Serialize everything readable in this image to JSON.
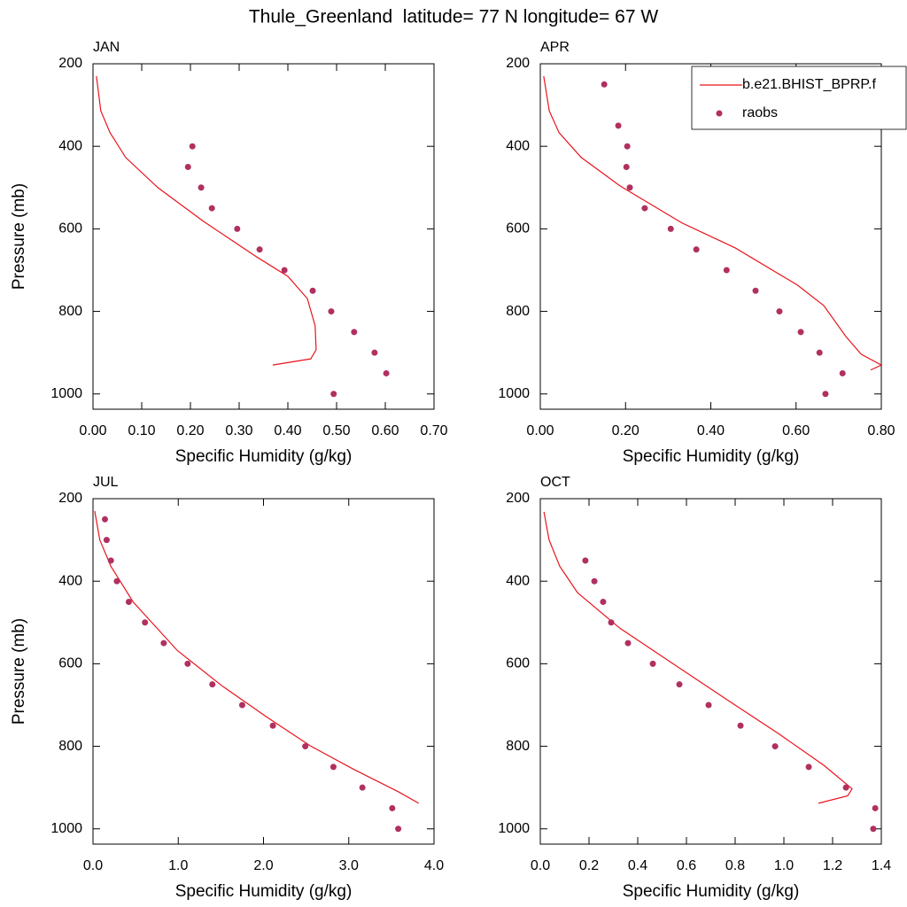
{
  "title": "Thule_Greenland  latitude= 77 N longitude= 67 W",
  "chart_data": [
    {
      "type": "line",
      "title": "JAN",
      "xlabel": "Specific Humidity (g/kg)",
      "ylabel": "Pressure (mb)",
      "xlim": [
        0,
        0.7
      ],
      "xticks": [
        {
          "value": 0,
          "label": "0.00"
        },
        {
          "value": 0.1,
          "label": "0.10"
        },
        {
          "value": 0.2,
          "label": "0.20"
        },
        {
          "value": 0.3,
          "label": "0.30"
        },
        {
          "value": 0.4,
          "label": "0.40"
        },
        {
          "value": 0.5,
          "label": "0.50"
        },
        {
          "value": 0.6,
          "label": "0.60"
        },
        {
          "value": 0.7,
          "label": "0.70"
        }
      ],
      "ylim": [
        200,
        1037
      ],
      "yticks": [
        200,
        400,
        600,
        800,
        1000
      ],
      "y_reversed": true,
      "series": [
        {
          "type": "line",
          "color": "#e8141c",
          "x": [
            0.007,
            0.016,
            0.035,
            0.067,
            0.133,
            0.227,
            0.336,
            0.4,
            0.44,
            0.456,
            0.458,
            0.447,
            0.369
          ],
          "y": [
            230,
            314,
            367,
            427,
            500,
            582,
            668,
            715,
            769,
            835,
            893,
            915,
            930
          ]
        },
        {
          "type": "scatter",
          "color": "#b03060",
          "x": [
            0.204,
            0.195,
            0.222,
            0.244,
            0.296,
            0.342,
            0.393,
            0.451,
            0.489,
            0.536,
            0.578,
            0.602,
            0.494
          ],
          "y": [
            400,
            450,
            500,
            550,
            600,
            650,
            700,
            750,
            800,
            850,
            900,
            950,
            1000
          ]
        }
      ]
    },
    {
      "type": "line",
      "title": "APR",
      "xlabel": "Specific Humidity (g/kg)",
      "xlim": [
        0,
        0.8
      ],
      "xticks": [
        {
          "value": 0,
          "label": "0.00"
        },
        {
          "value": 0.2,
          "label": "0.20"
        },
        {
          "value": 0.4,
          "label": "0.40"
        },
        {
          "value": 0.6,
          "label": "0.60"
        },
        {
          "value": 0.8,
          "label": "0.80"
        }
      ],
      "ylim": [
        200,
        1037
      ],
      "yticks": [
        200,
        400,
        600,
        800,
        1000
      ],
      "y_reversed": true,
      "legend": "upper right",
      "series": [
        {
          "type": "line",
          "name": "b.e21.BHIST_BPRP.f",
          "color": "#e8141c",
          "x": [
            0.008,
            0.021,
            0.044,
            0.096,
            0.187,
            0.333,
            0.457,
            0.603,
            0.665,
            0.717,
            0.753,
            0.8,
            0.775
          ],
          "y": [
            230,
            314,
            367,
            427,
            496,
            586,
            646,
            736,
            786,
            861,
            904,
            930,
            942
          ]
        },
        {
          "type": "scatter",
          "name": "raobs",
          "color": "#b03060",
          "x": [
            0.15,
            0.183,
            0.204,
            0.202,
            0.21,
            0.245,
            0.306,
            0.366,
            0.437,
            0.505,
            0.561,
            0.611,
            0.655,
            0.709,
            0.669
          ],
          "y": [
            250,
            350,
            400,
            450,
            500,
            550,
            600,
            650,
            700,
            750,
            800,
            850,
            900,
            950,
            1000
          ]
        }
      ]
    },
    {
      "type": "line",
      "title": "JUL",
      "xlabel": "Specific Humidity (g/kg)",
      "ylabel": "Pressure (mb)",
      "xlim": [
        0,
        4
      ],
      "xticks": [
        {
          "value": 0,
          "label": "0.0"
        },
        {
          "value": 1,
          "label": "1.0"
        },
        {
          "value": 2,
          "label": "2.0"
        },
        {
          "value": 3,
          "label": "3.0"
        },
        {
          "value": 4,
          "label": "4.0"
        }
      ],
      "ylim": [
        200,
        1037
      ],
      "yticks": [
        200,
        400,
        600,
        800,
        1000
      ],
      "y_reversed": true,
      "series": [
        {
          "type": "line",
          "color": "#e8141c",
          "x": [
            0.02,
            0.08,
            0.21,
            0.47,
            0.99,
            1.51,
            2.03,
            2.55,
            3.06,
            3.58,
            3.82
          ],
          "y": [
            230,
            300,
            364,
            450,
            568,
            653,
            728,
            799,
            856,
            910,
            938
          ]
        },
        {
          "type": "scatter",
          "color": "#b03060",
          "x": [
            0.14,
            0.16,
            0.21,
            0.28,
            0.42,
            0.61,
            0.83,
            1.11,
            1.4,
            1.75,
            2.11,
            2.49,
            2.82,
            3.16,
            3.51,
            3.58
          ],
          "y": [
            250,
            300,
            350,
            400,
            450,
            500,
            550,
            600,
            650,
            700,
            750,
            800,
            850,
            900,
            950,
            1000
          ]
        }
      ]
    },
    {
      "type": "line",
      "title": "OCT",
      "xlabel": "Specific Humidity (g/kg)",
      "xlim": [
        0,
        1.4
      ],
      "xticks": [
        {
          "value": 0,
          "label": "0.0"
        },
        0.2,
        0.4,
        0.6,
        0.8,
        {
          "value": 1,
          "label": "1.0"
        },
        1.2,
        1.4
      ],
      "ylim": [
        200,
        1037
      ],
      "yticks": [
        200,
        400,
        600,
        800,
        1000
      ],
      "y_reversed": true,
      "series": [
        {
          "type": "line",
          "color": "#e8141c",
          "x": [
            0.015,
            0.036,
            0.08,
            0.153,
            0.327,
            0.545,
            0.764,
            0.982,
            1.164,
            1.28,
            1.262,
            1.142
          ],
          "y": [
            232,
            300,
            364,
            428,
            514,
            600,
            686,
            771,
            846,
            903,
            920,
            938
          ]
        },
        {
          "type": "scatter",
          "color": "#b03060",
          "x": [
            0.185,
            0.222,
            0.258,
            0.291,
            0.36,
            0.462,
            0.571,
            0.691,
            0.822,
            0.964,
            1.102,
            1.255,
            1.375,
            1.367
          ],
          "y": [
            350,
            400,
            450,
            500,
            550,
            600,
            650,
            700,
            750,
            800,
            850,
            900,
            950,
            1000
          ]
        }
      ]
    }
  ]
}
